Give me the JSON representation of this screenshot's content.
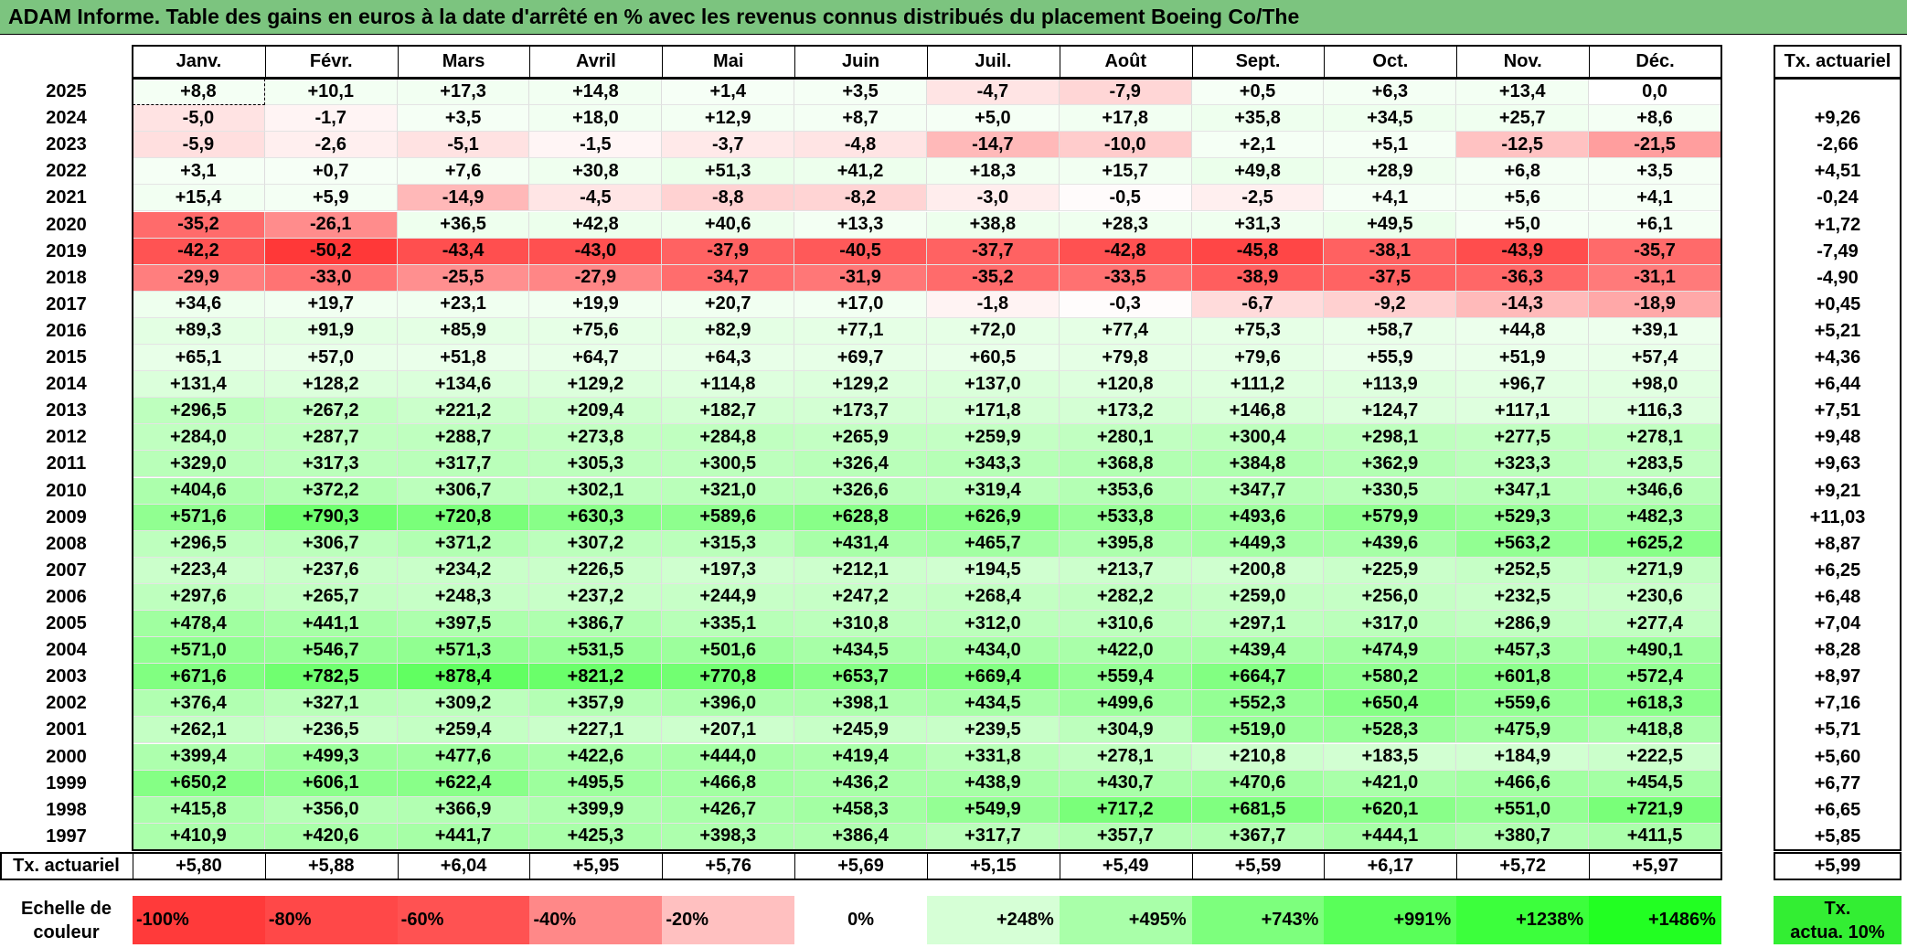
{
  "title": "ADAM Informe. Table des gains en euros à la date d'arrêté en % avec les revenus connus distribués du placement Boeing Co/The",
  "colors": {
    "title_bg": "#7cc47f",
    "negative_max": "#ff3a3a",
    "positive_max": "#33ff33",
    "neutral": "#ffffff"
  },
  "chart_data": {
    "type": "heatmap",
    "months": [
      "Janv.",
      "Févr.",
      "Mars",
      "Avril",
      "Mai",
      "Juin",
      "Juil.",
      "Août",
      "Sept.",
      "Oct.",
      "Nov.",
      "Déc."
    ],
    "side_header": "Tx. actuariel",
    "rows": [
      {
        "year": "2025",
        "values": [
          "+8,8",
          "+10,1",
          "+17,3",
          "+14,8",
          "+1,4",
          "+3,5",
          "-4,7",
          "-7,9",
          "+0,5",
          "+6,3",
          "+13,4",
          "0,0"
        ],
        "rate": ""
      },
      {
        "year": "2024",
        "values": [
          "-5,0",
          "-1,7",
          "+3,5",
          "+18,0",
          "+12,9",
          "+8,7",
          "+5,0",
          "+17,8",
          "+35,8",
          "+34,5",
          "+25,7",
          "+8,6"
        ],
        "rate": "+9,26"
      },
      {
        "year": "2023",
        "values": [
          "-5,9",
          "-2,6",
          "-5,1",
          "-1,5",
          "-3,7",
          "-4,8",
          "-14,7",
          "-10,0",
          "+2,1",
          "+5,1",
          "-12,5",
          "-21,5"
        ],
        "rate": "-2,66"
      },
      {
        "year": "2022",
        "values": [
          "+3,1",
          "+0,7",
          "+7,6",
          "+30,8",
          "+51,3",
          "+41,2",
          "+18,3",
          "+15,7",
          "+49,8",
          "+28,9",
          "+6,8",
          "+3,5"
        ],
        "rate": "+4,51"
      },
      {
        "year": "2021",
        "values": [
          "+15,4",
          "+5,9",
          "-14,9",
          "-4,5",
          "-8,8",
          "-8,2",
          "-3,0",
          "-0,5",
          "-2,5",
          "+4,1",
          "+5,6",
          "+4,1"
        ],
        "rate": "-0,24"
      },
      {
        "year": "2020",
        "values": [
          "-35,2",
          "-26,1",
          "+36,5",
          "+42,8",
          "+40,6",
          "+13,3",
          "+38,8",
          "+28,3",
          "+31,3",
          "+49,5",
          "+5,0",
          "+6,1"
        ],
        "rate": "+1,72"
      },
      {
        "year": "2019",
        "values": [
          "-42,2",
          "-50,2",
          "-43,4",
          "-43,0",
          "-37,9",
          "-40,5",
          "-37,7",
          "-42,8",
          "-45,8",
          "-38,1",
          "-43,9",
          "-35,7"
        ],
        "rate": "-7,49"
      },
      {
        "year": "2018",
        "values": [
          "-29,9",
          "-33,0",
          "-25,5",
          "-27,9",
          "-34,7",
          "-31,9",
          "-35,2",
          "-33,5",
          "-38,9",
          "-37,5",
          "-36,3",
          "-31,1"
        ],
        "rate": "-4,90"
      },
      {
        "year": "2017",
        "values": [
          "+34,6",
          "+19,7",
          "+23,1",
          "+19,9",
          "+20,7",
          "+17,0",
          "-1,8",
          "-0,3",
          "-6,7",
          "-9,2",
          "-14,3",
          "-18,9"
        ],
        "rate": "+0,45"
      },
      {
        "year": "2016",
        "values": [
          "+89,3",
          "+91,9",
          "+85,9",
          "+75,6",
          "+82,9",
          "+77,1",
          "+72,0",
          "+77,4",
          "+75,3",
          "+58,7",
          "+44,8",
          "+39,1"
        ],
        "rate": "+5,21"
      },
      {
        "year": "2015",
        "values": [
          "+65,1",
          "+57,0",
          "+51,8",
          "+64,7",
          "+64,3",
          "+69,7",
          "+60,5",
          "+79,8",
          "+79,6",
          "+55,9",
          "+51,9",
          "+57,4"
        ],
        "rate": "+4,36"
      },
      {
        "year": "2014",
        "values": [
          "+131,4",
          "+128,2",
          "+134,6",
          "+129,2",
          "+114,8",
          "+129,2",
          "+137,0",
          "+120,8",
          "+111,2",
          "+113,9",
          "+96,7",
          "+98,0"
        ],
        "rate": "+6,44"
      },
      {
        "year": "2013",
        "values": [
          "+296,5",
          "+267,2",
          "+221,2",
          "+209,4",
          "+182,7",
          "+173,7",
          "+171,8",
          "+173,2",
          "+146,8",
          "+124,7",
          "+117,1",
          "+116,3"
        ],
        "rate": "+7,51"
      },
      {
        "year": "2012",
        "values": [
          "+284,0",
          "+287,7",
          "+288,7",
          "+273,8",
          "+284,8",
          "+265,9",
          "+259,9",
          "+280,1",
          "+300,4",
          "+298,1",
          "+277,5",
          "+278,1"
        ],
        "rate": "+9,48"
      },
      {
        "year": "2011",
        "values": [
          "+329,0",
          "+317,3",
          "+317,7",
          "+305,3",
          "+300,5",
          "+326,4",
          "+343,3",
          "+368,8",
          "+384,8",
          "+362,9",
          "+323,3",
          "+283,5"
        ],
        "rate": "+9,63"
      },
      {
        "year": "2010",
        "values": [
          "+404,6",
          "+372,2",
          "+306,7",
          "+302,1",
          "+321,0",
          "+326,6",
          "+319,4",
          "+353,6",
          "+347,7",
          "+330,5",
          "+347,1",
          "+346,6"
        ],
        "rate": "+9,21"
      },
      {
        "year": "2009",
        "values": [
          "+571,6",
          "+790,3",
          "+720,8",
          "+630,3",
          "+589,6",
          "+628,8",
          "+626,9",
          "+533,8",
          "+493,6",
          "+579,9",
          "+529,3",
          "+482,3"
        ],
        "rate": "+11,03"
      },
      {
        "year": "2008",
        "values": [
          "+296,5",
          "+306,7",
          "+371,2",
          "+307,2",
          "+315,3",
          "+431,4",
          "+465,7",
          "+395,8",
          "+449,3",
          "+439,6",
          "+563,2",
          "+625,2"
        ],
        "rate": "+8,87"
      },
      {
        "year": "2007",
        "values": [
          "+223,4",
          "+237,6",
          "+234,2",
          "+226,5",
          "+197,3",
          "+212,1",
          "+194,5",
          "+213,7",
          "+200,8",
          "+225,9",
          "+252,5",
          "+271,9"
        ],
        "rate": "+6,25"
      },
      {
        "year": "2006",
        "values": [
          "+297,6",
          "+265,7",
          "+248,3",
          "+237,2",
          "+244,9",
          "+247,2",
          "+268,4",
          "+282,2",
          "+259,0",
          "+256,0",
          "+232,5",
          "+230,6"
        ],
        "rate": "+6,48"
      },
      {
        "year": "2005",
        "values": [
          "+478,4",
          "+441,1",
          "+397,5",
          "+386,7",
          "+335,1",
          "+310,8",
          "+312,0",
          "+310,6",
          "+297,1",
          "+317,0",
          "+286,9",
          "+277,4"
        ],
        "rate": "+7,04"
      },
      {
        "year": "2004",
        "values": [
          "+571,0",
          "+546,7",
          "+571,3",
          "+531,5",
          "+501,6",
          "+434,5",
          "+434,0",
          "+422,0",
          "+439,4",
          "+474,9",
          "+457,3",
          "+490,1"
        ],
        "rate": "+8,28"
      },
      {
        "year": "2003",
        "values": [
          "+671,6",
          "+782,5",
          "+878,4",
          "+821,2",
          "+770,8",
          "+653,7",
          "+669,4",
          "+559,4",
          "+664,7",
          "+580,2",
          "+601,8",
          "+572,4"
        ],
        "rate": "+8,97"
      },
      {
        "year": "2002",
        "values": [
          "+376,4",
          "+327,1",
          "+309,2",
          "+357,9",
          "+396,0",
          "+398,1",
          "+434,5",
          "+499,6",
          "+552,3",
          "+650,4",
          "+559,6",
          "+618,3"
        ],
        "rate": "+7,16"
      },
      {
        "year": "2001",
        "values": [
          "+262,1",
          "+236,5",
          "+259,4",
          "+227,1",
          "+207,1",
          "+245,9",
          "+239,5",
          "+304,9",
          "+519,0",
          "+528,3",
          "+475,9",
          "+418,8"
        ],
        "rate": "+5,71"
      },
      {
        "year": "2000",
        "values": [
          "+399,4",
          "+499,3",
          "+477,6",
          "+422,6",
          "+444,0",
          "+419,4",
          "+331,8",
          "+278,1",
          "+210,8",
          "+183,5",
          "+184,9",
          "+222,5"
        ],
        "rate": "+5,60"
      },
      {
        "year": "1999",
        "values": [
          "+650,2",
          "+606,1",
          "+622,4",
          "+495,5",
          "+466,8",
          "+436,2",
          "+438,9",
          "+430,7",
          "+470,6",
          "+421,0",
          "+466,6",
          "+454,5"
        ],
        "rate": "+6,77"
      },
      {
        "year": "1998",
        "values": [
          "+415,8",
          "+356,0",
          "+366,9",
          "+399,9",
          "+426,7",
          "+458,3",
          "+549,9",
          "+717,2",
          "+681,5",
          "+620,1",
          "+551,0",
          "+721,9"
        ],
        "rate": "+6,65"
      },
      {
        "year": "1997",
        "values": [
          "+410,9",
          "+420,6",
          "+441,7",
          "+425,3",
          "+398,3",
          "+386,4",
          "+317,7",
          "+357,7",
          "+367,7",
          "+444,1",
          "+380,7",
          "+411,5"
        ],
        "rate": "+5,85"
      }
    ],
    "footer": {
      "label": "Tx. actuariel",
      "values": [
        "+5,80",
        "+5,88",
        "+6,04",
        "+5,95",
        "+5,76",
        "+5,69",
        "+5,15",
        "+5,49",
        "+5,59",
        "+6,17",
        "+5,72",
        "+5,97"
      ],
      "total": "+5,99"
    },
    "legend": {
      "label_line1": "Echelle de",
      "label_line2": "couleur",
      "steps": [
        {
          "text": "-100%",
          "value": -100,
          "color": "#ff3a3a"
        },
        {
          "text": "-80%",
          "value": -80,
          "color": "#ff4848"
        },
        {
          "text": "-60%",
          "value": -60,
          "color": "#ff5252"
        },
        {
          "text": "-40%",
          "value": -40,
          "color": "#ff8888"
        },
        {
          "text": "-20%",
          "value": -20,
          "color": "#ffc0c0"
        },
        {
          "text": "0%",
          "value": 0,
          "color": "#ffffff"
        },
        {
          "text": "+248%",
          "value": 248,
          "color": "#d6ffd6"
        },
        {
          "text": "+495%",
          "value": 495,
          "color": "#a9ffa9"
        },
        {
          "text": "+743%",
          "value": 743,
          "color": "#7dff7d"
        },
        {
          "text": "+991%",
          "value": 991,
          "color": "#59ff59"
        },
        {
          "text": "+1238%",
          "value": 1238,
          "color": "#3cff3c"
        },
        {
          "text": "+1486%",
          "value": 1486,
          "color": "#22ff22"
        }
      ],
      "side_line1": "Tx.",
      "side_line2": "actua. 10%",
      "side_color": "#33ee33"
    }
  }
}
